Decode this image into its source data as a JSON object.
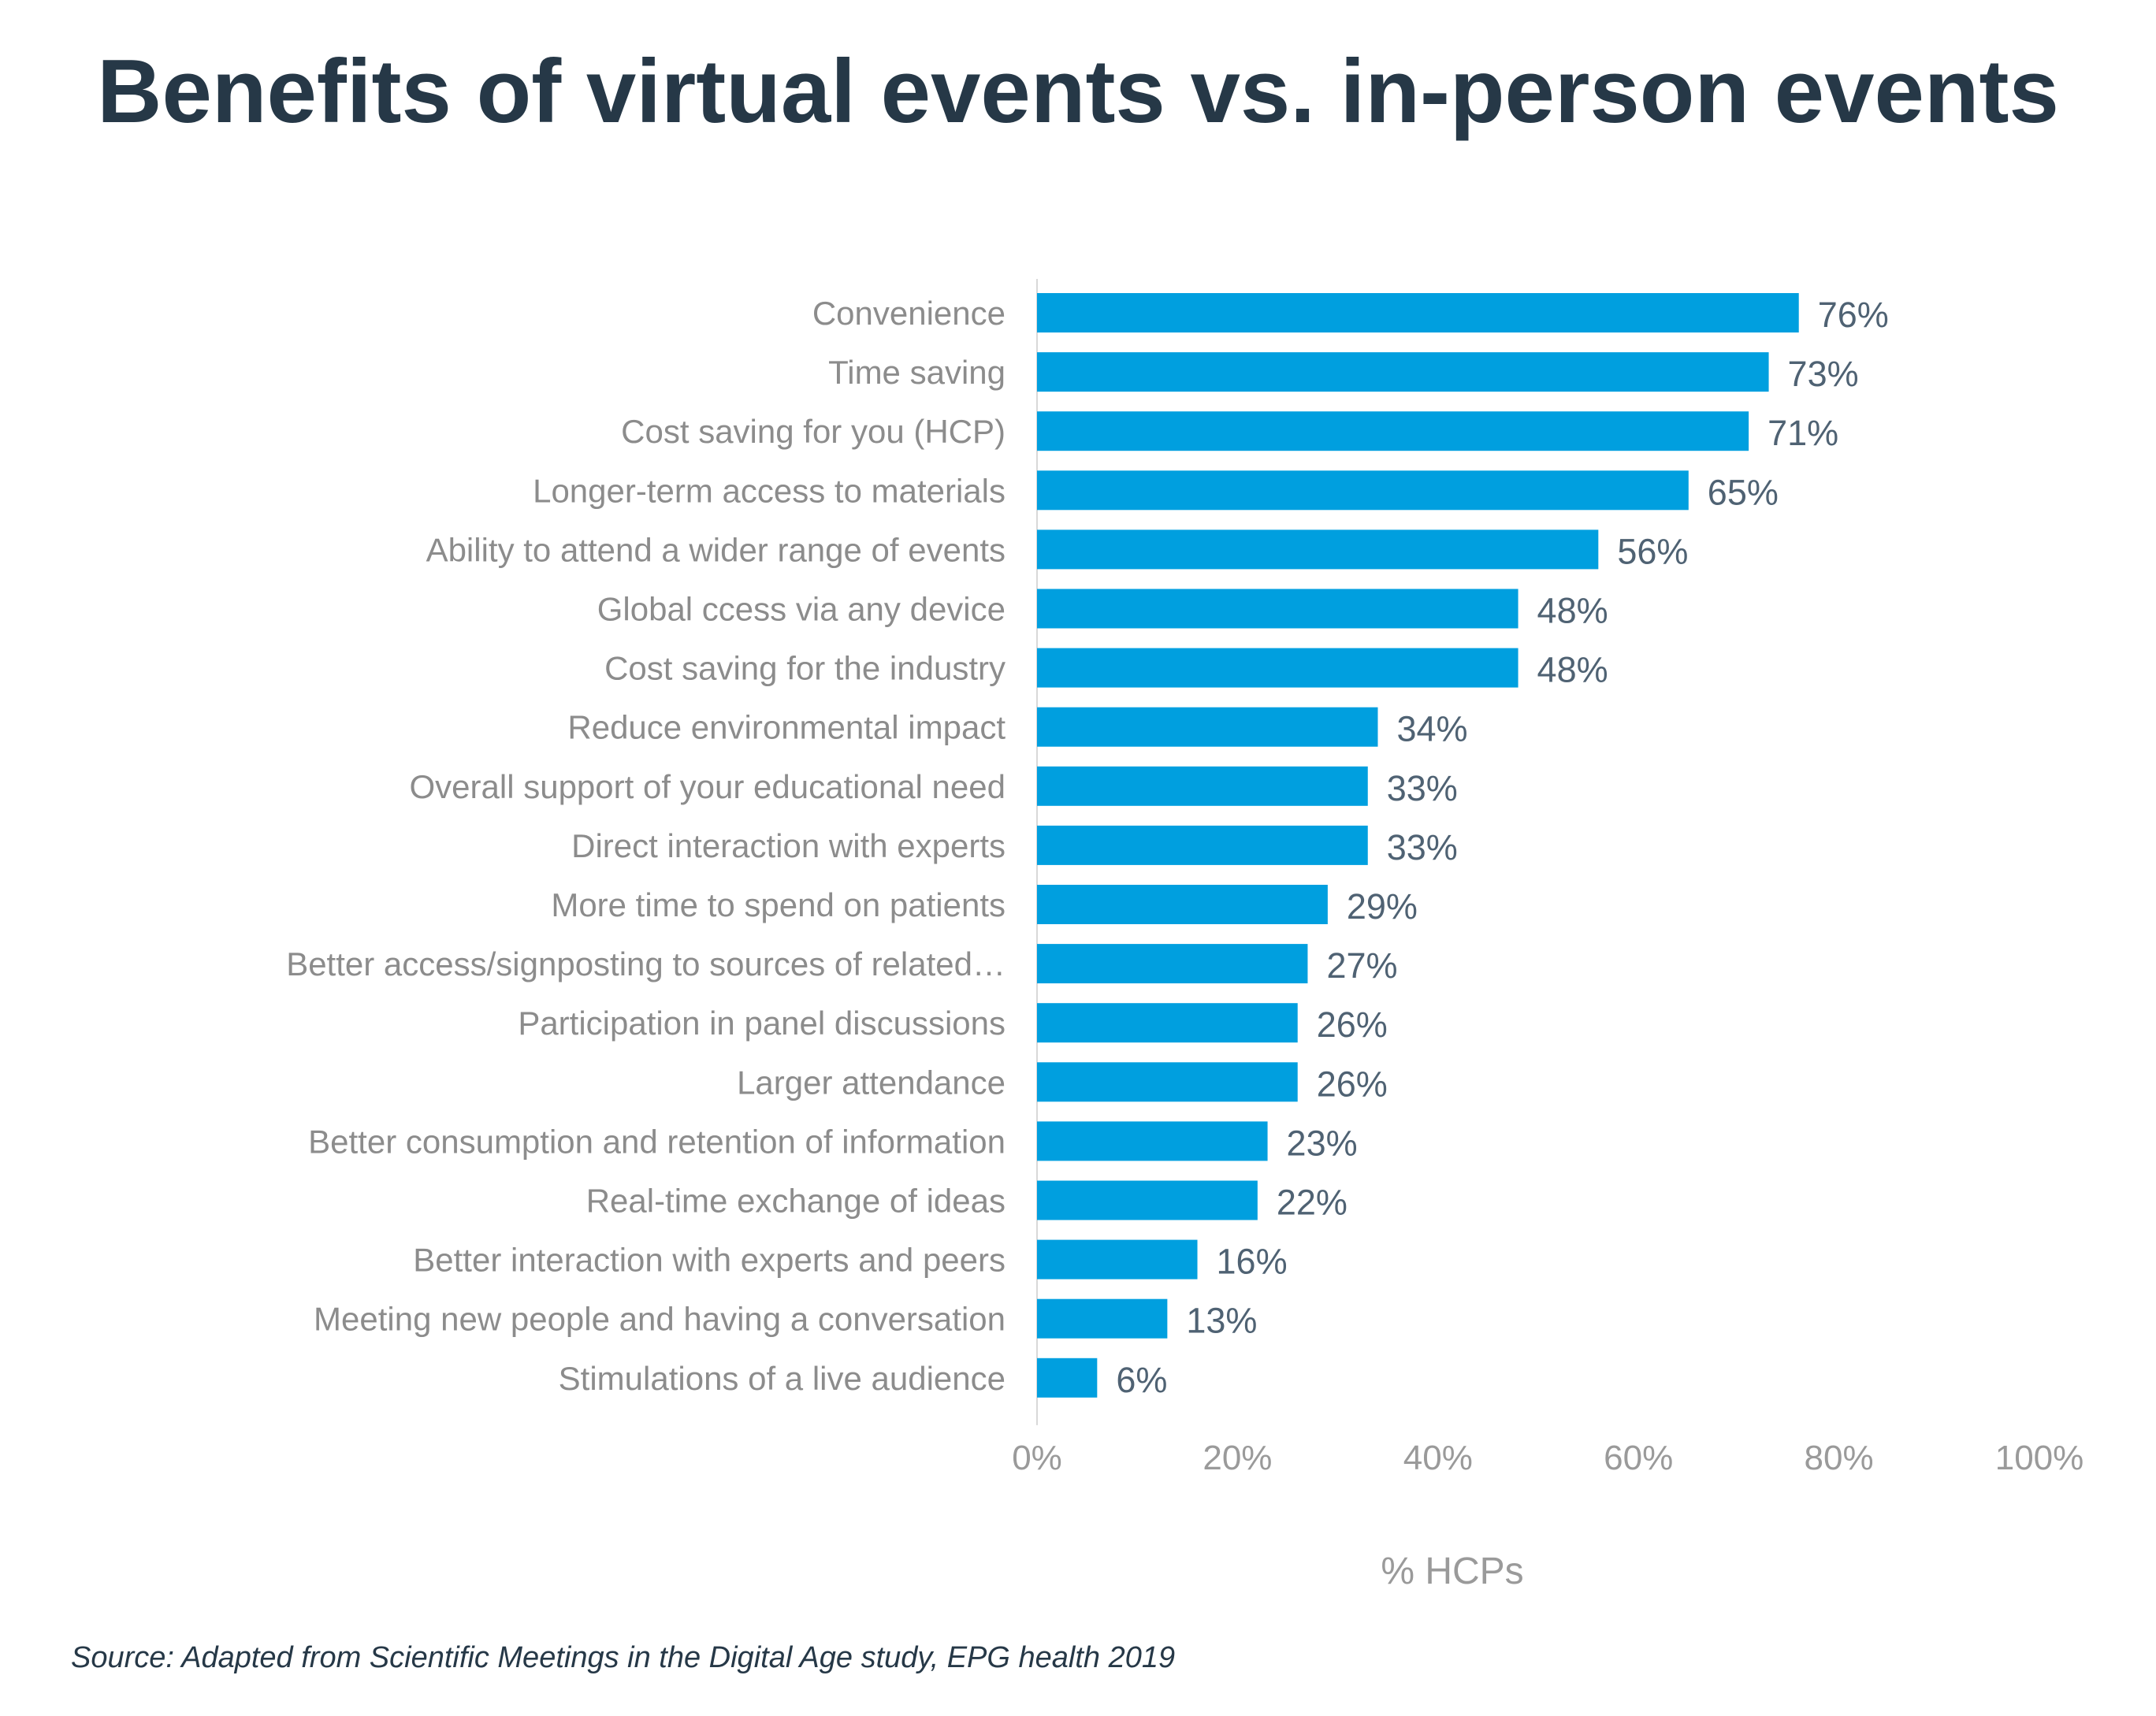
{
  "chart_data": {
    "type": "bar",
    "orientation": "horizontal",
    "title": "Benefits of virtual events vs. in-person events",
    "categories": [
      "Convenience",
      "Time saving",
      "Cost saving for you (HCP)",
      "Longer-term access to materials",
      "Ability to attend a wider range of events",
      "Global ccess via any device",
      "Cost saving for the industry",
      "Reduce environmental impact",
      "Overall support of your educational need",
      "Direct interaction with experts",
      "More time to spend on patients",
      "Better access/signposting to sources of related…",
      "Participation in panel discussions",
      "Larger attendance",
      "Better consumption and retention of information",
      "Real-time exchange of ideas",
      "Better interaction with experts and peers",
      "Meeting new people and having a conversation",
      "Stimulations of a live audience"
    ],
    "values": [
      76,
      73,
      71,
      65,
      56,
      48,
      48,
      34,
      33,
      33,
      29,
      27,
      26,
      26,
      23,
      22,
      16,
      13,
      6
    ],
    "value_labels": [
      "76%",
      "73%",
      "71%",
      "65%",
      "56%",
      "48%",
      "48%",
      "34%",
      "33%",
      "33%",
      "29%",
      "27%",
      "26%",
      "26%",
      "23%",
      "22%",
      "16%",
      "13%",
      "6%"
    ],
    "xlabel": "% HCPs",
    "ylabel": "",
    "xlim": [
      0,
      100
    ],
    "xticks": [
      "0%",
      "20%",
      "40%",
      "60%",
      "80%",
      "100%"
    ],
    "grid": false,
    "legend": "none",
    "bar_color": "#009fdf"
  },
  "source": "Source: Adapted from Scientific Meetings in the Digital Age study, EPG health 2019"
}
